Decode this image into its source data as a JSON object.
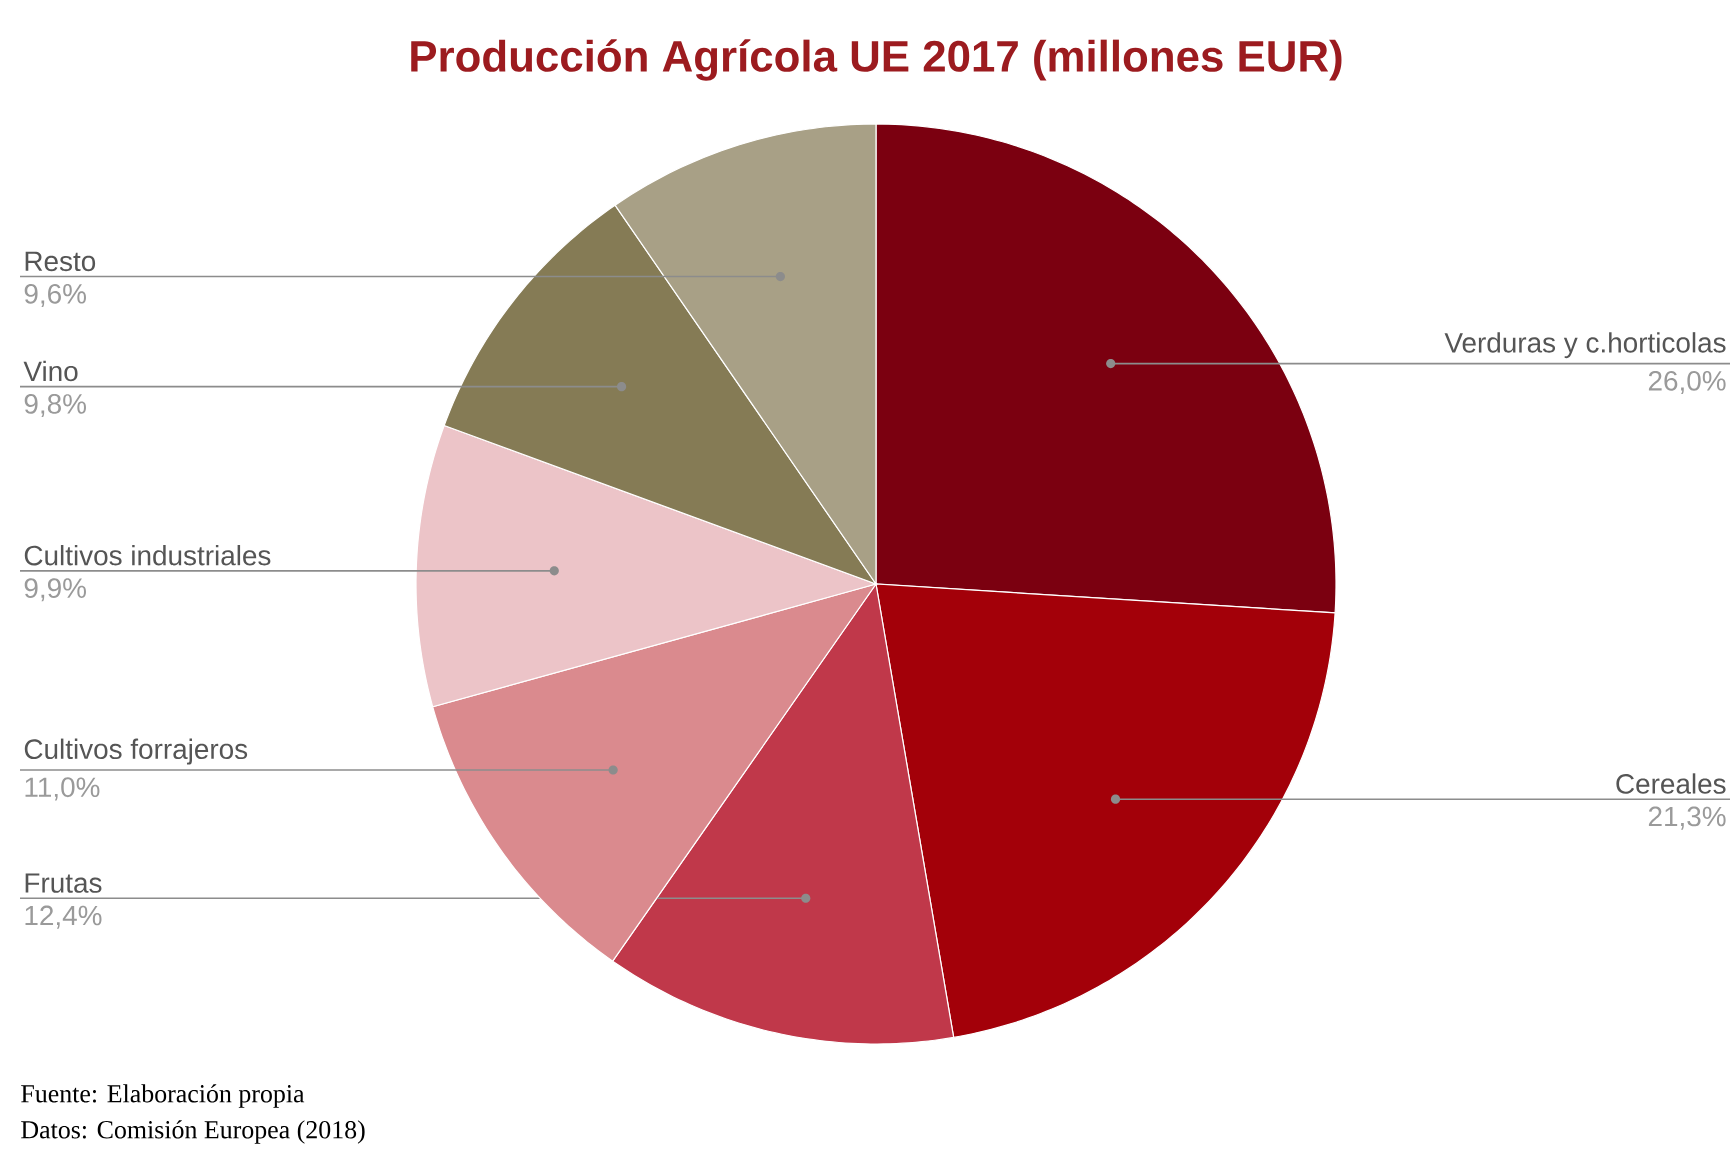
{
  "chart_data": {
    "type": "pie",
    "title": "Producción Agrícola UE 2017 (millones EUR)",
    "categories": [
      "Verduras y c.horticolas",
      "Cereales",
      "Frutas",
      "Cultivos forrajeros",
      "Cultivos industriales",
      "Vino",
      "Resto"
    ],
    "values": [
      26.0,
      21.3,
      12.4,
      11.0,
      9.9,
      9.8,
      9.6
    ],
    "value_labels": [
      "26,0%",
      "21,3%",
      "12,4%",
      "11,0%",
      "9,9%",
      "9,8%",
      "9,6%"
    ],
    "colors": [
      "#7b0010",
      "#a30009",
      "#c0384a",
      "#da8a8e",
      "#ecc4c8",
      "#857b55",
      "#a8a086"
    ],
    "annotations": [
      "Fuente: Elaboración propia",
      "Datos: Comisión Europea (2018)"
    ]
  }
}
